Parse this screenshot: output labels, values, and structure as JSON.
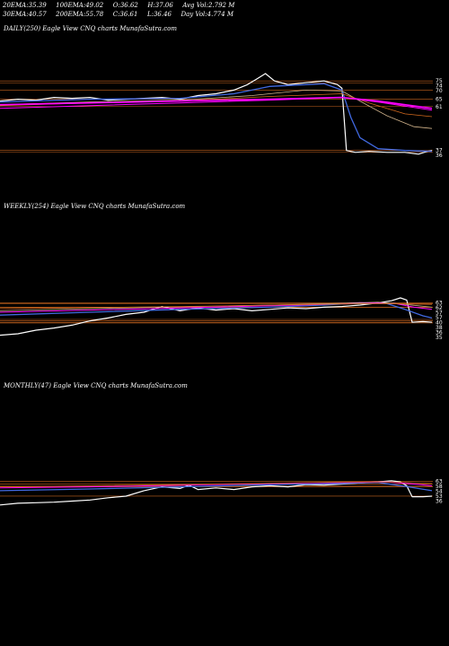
{
  "header": {
    "row1": [
      {
        "label": "20EMA:",
        "value": "35.39"
      },
      {
        "label": "100EMA:",
        "value": "49.02"
      },
      {
        "label": "O:",
        "value": "36.62"
      },
      {
        "label": "H:",
        "value": "37.06"
      },
      {
        "label": "Avg Vol:",
        "value": "2.792  M"
      }
    ],
    "row2": [
      {
        "label": "30EMA:",
        "value": "40.57"
      },
      {
        "label": "200EMA:",
        "value": "55.78"
      },
      {
        "label": "C:",
        "value": "36.61"
      },
      {
        "label": "L:",
        "value": "36.46"
      },
      {
        "label": "Day Vol:",
        "value": "4.774  M"
      }
    ]
  },
  "panels": [
    {
      "title": "DAILY(250) Eagle  View  CNQ charts MunafaSutra.com"
    },
    {
      "title": "WEEKLY(254) Eagle  View  CNQ charts MunafaSutra.com"
    },
    {
      "title": "MONTHLY(47) Eagle  View  CNQ charts MunafaSutra.com"
    }
  ],
  "colors": {
    "price": "#ffffff",
    "fast_ma": "#4169e1",
    "slow_ma": "#ff00ff",
    "ma_orange": "#d2691e",
    "ma_tan": "#d2b48c",
    "level": "#c8641e"
  },
  "chart_data": [
    {
      "type": "line",
      "title": "DAILY(250) Eagle  View  CNQ charts MunafaSutra.com",
      "ylim": [
        30,
        80
      ],
      "levels": [
        75,
        74,
        70,
        65,
        61,
        36,
        37
      ],
      "tick_labels": [
        "75",
        "74",
        "70",
        "65",
        "61",
        "36",
        "37"
      ],
      "series": [
        {
          "points": [
            [
              0,
              64
            ],
            [
              20,
              65
            ],
            [
              40,
              64.5
            ],
            [
              60,
              66
            ],
            [
              80,
              65.5
            ],
            [
              100,
              66
            ],
            [
              120,
              64.5
            ],
            [
              140,
              65
            ],
            [
              160,
              65.5
            ],
            [
              180,
              66
            ],
            [
              200,
              65
            ],
            [
              220,
              67
            ],
            [
              240,
              68
            ],
            [
              260,
              70
            ],
            [
              275,
              73
            ],
            [
              285,
              76
            ],
            [
              295,
              79
            ],
            [
              305,
              75
            ],
            [
              320,
              73
            ],
            [
              340,
              74
            ],
            [
              360,
              75
            ],
            [
              375,
              73
            ],
            [
              380,
              71
            ],
            [
              385,
              37
            ],
            [
              395,
              36
            ],
            [
              410,
              36.5
            ],
            [
              430,
              36
            ],
            [
              450,
              36
            ],
            [
              465,
              35
            ],
            [
              475,
              36.5
            ],
            [
              480,
              37
            ]
          ]
        },
        {
          "points": [
            [
              0,
              63.5
            ],
            [
              100,
              65
            ],
            [
              200,
              65.5
            ],
            [
              260,
              68
            ],
            [
              300,
              72
            ],
            [
              360,
              73.5
            ],
            [
              380,
              70
            ],
            [
              390,
              55
            ],
            [
              400,
              44
            ],
            [
              420,
              38
            ],
            [
              450,
              37
            ],
            [
              480,
              36.5
            ]
          ]
        },
        {
          "points": [
            [
              0,
              62
            ],
            [
              100,
              63.5
            ],
            [
              200,
              64.5
            ],
            [
              280,
              67
            ],
            [
              340,
              70
            ],
            [
              380,
              69.5
            ],
            [
              400,
              64
            ],
            [
              430,
              56
            ],
            [
              460,
              50
            ],
            [
              480,
              49
            ]
          ]
        },
        {
          "points": [
            [
              0,
              61.5
            ],
            [
              100,
              63
            ],
            [
              200,
              64
            ],
            [
              300,
              66.5
            ],
            [
              380,
              68
            ],
            [
              410,
              63
            ],
            [
              450,
              57
            ],
            [
              480,
              55.5
            ]
          ]
        },
        {
          "points": [
            [
              0,
              62
            ],
            [
              100,
              63
            ],
            [
              200,
              64
            ],
            [
              300,
              65
            ],
            [
              380,
              66
            ],
            [
              420,
              64
            ],
            [
              450,
              62
            ],
            [
              480,
              60
            ]
          ]
        },
        {
          "points": [
            [
              0,
              60
            ],
            [
              100,
              61.5
            ],
            [
              200,
              63
            ],
            [
              300,
              64.5
            ],
            [
              380,
              66
            ],
            [
              420,
              63.5
            ],
            [
              480,
              59
            ]
          ]
        }
      ]
    },
    {
      "type": "line",
      "title": "WEEKLY(254) Eagle  View  CNQ charts MunafaSutra.com",
      "ylim": [
        10,
        85
      ],
      "levels": [
        63,
        62,
        57,
        57,
        40,
        38,
        35,
        36
      ],
      "tick_labels": [
        "63",
        "62",
        "57",
        "57",
        "40",
        "38",
        "35",
        "36"
      ],
      "series": [
        {
          "points": [
            [
              0,
              18
            ],
            [
              20,
              20
            ],
            [
              40,
              25
            ],
            [
              60,
              28
            ],
            [
              80,
              32
            ],
            [
              100,
              38
            ],
            [
              120,
              42
            ],
            [
              140,
              47
            ],
            [
              160,
              50
            ],
            [
              180,
              58
            ],
            [
              200,
              52
            ],
            [
              220,
              56
            ],
            [
              240,
              53
            ],
            [
              260,
              55
            ],
            [
              280,
              52
            ],
            [
              300,
              54
            ],
            [
              320,
              56
            ],
            [
              340,
              55
            ],
            [
              360,
              57
            ],
            [
              380,
              58
            ],
            [
              400,
              60
            ],
            [
              420,
              63
            ],
            [
              435,
              66
            ],
            [
              445,
              70
            ],
            [
              452,
              67
            ],
            [
              458,
              36
            ],
            [
              470,
              37
            ],
            [
              480,
              36
            ]
          ]
        },
        {
          "points": [
            [
              0,
              46
            ],
            [
              100,
              50
            ],
            [
              200,
              54
            ],
            [
              300,
              57
            ],
            [
              360,
              60
            ],
            [
              400,
              63
            ],
            [
              430,
              62
            ],
            [
              450,
              54
            ],
            [
              470,
              45
            ],
            [
              480,
              42
            ]
          ]
        },
        {
          "points": [
            [
              0,
              50
            ],
            [
              100,
              53
            ],
            [
              200,
              56
            ],
            [
              300,
              59
            ],
            [
              360,
              61
            ],
            [
              400,
              63.5
            ],
            [
              440,
              62
            ],
            [
              460,
              57
            ],
            [
              480,
              54
            ]
          ]
        },
        {
          "points": [
            [
              0,
              52
            ],
            [
              100,
              55
            ],
            [
              200,
              57.5
            ],
            [
              300,
              60
            ],
            [
              380,
              62.5
            ],
            [
              420,
              64
            ],
            [
              450,
              61
            ],
            [
              480,
              57
            ]
          ]
        },
        {
          "points": [
            [
              0,
              55
            ],
            [
              100,
              56.5
            ],
            [
              200,
              58
            ],
            [
              300,
              60
            ],
            [
              380,
              61.5
            ],
            [
              430,
              62
            ],
            [
              480,
              61
            ]
          ]
        }
      ]
    },
    {
      "type": "line",
      "title": "MONTHLY(47) Eagle  View  CNQ charts MunafaSutra.com",
      "ylim": [
        0,
        85
      ],
      "levels": [
        63,
        58,
        54,
        53,
        36
      ],
      "tick_labels": [
        "63",
        "58",
        "54",
        "53",
        "36"
      ],
      "series": [
        {
          "points": [
            [
              0,
              20
            ],
            [
              20,
              23
            ],
            [
              40,
              24
            ],
            [
              60,
              25
            ],
            [
              80,
              27
            ],
            [
              100,
              29
            ],
            [
              120,
              33
            ],
            [
              140,
              36
            ],
            [
              160,
              46
            ],
            [
              180,
              53
            ],
            [
              200,
              50
            ],
            [
              210,
              56
            ],
            [
              220,
              48
            ],
            [
              240,
              51
            ],
            [
              260,
              48
            ],
            [
              280,
              53
            ],
            [
              300,
              55
            ],
            [
              320,
              53
            ],
            [
              340,
              57
            ],
            [
              360,
              56
            ],
            [
              380,
              58
            ],
            [
              400,
              60
            ],
            [
              420,
              62
            ],
            [
              435,
              64
            ],
            [
              445,
              62
            ],
            [
              452,
              55
            ],
            [
              458,
              35
            ],
            [
              470,
              35
            ],
            [
              480,
              36
            ]
          ]
        },
        {
          "points": [
            [
              0,
              46
            ],
            [
              100,
              49
            ],
            [
              200,
              53
            ],
            [
              300,
              57
            ],
            [
              380,
              59
            ],
            [
              420,
              61
            ],
            [
              450,
              54
            ],
            [
              480,
              46
            ]
          ]
        },
        {
          "points": [
            [
              0,
              51
            ],
            [
              100,
              53
            ],
            [
              200,
              56
            ],
            [
              300,
              59
            ],
            [
              380,
              61
            ],
            [
              430,
              62
            ],
            [
              460,
              58
            ],
            [
              480,
              55
            ]
          ]
        },
        {
          "points": [
            [
              0,
              53
            ],
            [
              100,
              55
            ],
            [
              200,
              57
            ],
            [
              300,
              59.5
            ],
            [
              380,
              61.5
            ],
            [
              430,
              62
            ],
            [
              480,
              59
            ]
          ]
        }
      ]
    }
  ]
}
